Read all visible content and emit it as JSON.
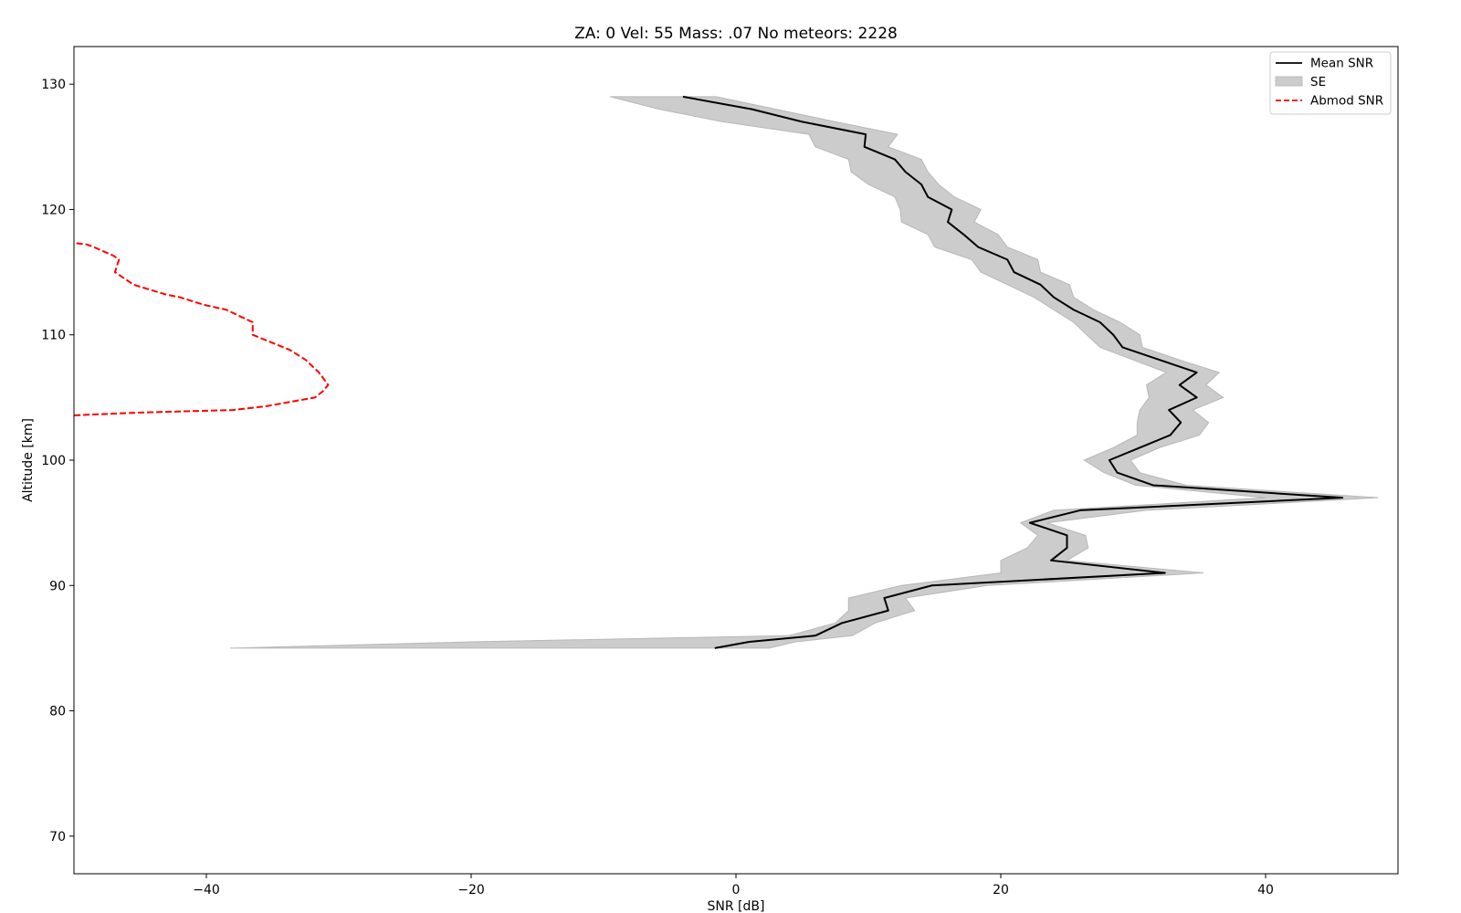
{
  "chart_data": {
    "type": "line",
    "title": "ZA: 0 Vel: 55 Mass: .07 No meteors: 2228",
    "xlabel": "SNR [dB]",
    "ylabel": "Altitude [km]",
    "xlim": [
      -50,
      50
    ],
    "ylim": [
      67,
      133
    ],
    "xticks": [
      -40,
      -20,
      0,
      20,
      40
    ],
    "xtick_labels": [
      "−40",
      "−20",
      "0",
      "20",
      "40"
    ],
    "yticks": [
      70,
      80,
      90,
      100,
      110,
      120,
      130
    ],
    "ytick_labels": [
      "70",
      "80",
      "90",
      "100",
      "110",
      "120",
      "130"
    ],
    "grid": false,
    "legend_position": "top-right",
    "series": [
      {
        "name": "Mean SNR",
        "style": "solid",
        "color": "#000000",
        "points": [
          [
            -4.0,
            129
          ],
          [
            1.2,
            128
          ],
          [
            5.0,
            127
          ],
          [
            9.8,
            126
          ],
          [
            9.7,
            125
          ],
          [
            12.0,
            124
          ],
          [
            12.8,
            123
          ],
          [
            14.0,
            122
          ],
          [
            14.5,
            121
          ],
          [
            16.3,
            120
          ],
          [
            16.0,
            119
          ],
          [
            17.2,
            118
          ],
          [
            18.3,
            117
          ],
          [
            20.5,
            116
          ],
          [
            21.0,
            115
          ],
          [
            23.0,
            114
          ],
          [
            24.0,
            113
          ],
          [
            25.5,
            112
          ],
          [
            27.5,
            111
          ],
          [
            28.5,
            110
          ],
          [
            29.2,
            109
          ],
          [
            32.0,
            108
          ],
          [
            34.8,
            107
          ],
          [
            33.5,
            106
          ],
          [
            34.8,
            105
          ],
          [
            32.7,
            104
          ],
          [
            33.6,
            103
          ],
          [
            32.8,
            102
          ],
          [
            30.5,
            101
          ],
          [
            28.2,
            100
          ],
          [
            28.8,
            99
          ],
          [
            31.5,
            98
          ],
          [
            45.8,
            97
          ],
          [
            26.0,
            96
          ],
          [
            22.2,
            95
          ],
          [
            25.0,
            94
          ],
          [
            25.0,
            93
          ],
          [
            23.8,
            92
          ],
          [
            32.4,
            91
          ],
          [
            14.8,
            90
          ],
          [
            11.2,
            89
          ],
          [
            11.5,
            88
          ],
          [
            8.0,
            87
          ],
          [
            6.0,
            86
          ],
          [
            1.0,
            85.5
          ],
          [
            -1.6,
            85
          ]
        ]
      },
      {
        "name": "SE",
        "style": "band",
        "color": "#cccccc",
        "upper": [
          [
            -1.5,
            129
          ],
          [
            3.0,
            128
          ],
          [
            7.5,
            127
          ],
          [
            12.2,
            126
          ],
          [
            11.5,
            125
          ],
          [
            14.0,
            124
          ],
          [
            14.5,
            123
          ],
          [
            15.3,
            122
          ],
          [
            16.5,
            121
          ],
          [
            18.5,
            120
          ],
          [
            18.0,
            119
          ],
          [
            19.8,
            118
          ],
          [
            20.5,
            117
          ],
          [
            22.8,
            116
          ],
          [
            23.0,
            115
          ],
          [
            25.2,
            114
          ],
          [
            25.5,
            113
          ],
          [
            27.0,
            112
          ],
          [
            29.0,
            111
          ],
          [
            30.5,
            110
          ],
          [
            30.7,
            109
          ],
          [
            33.5,
            108
          ],
          [
            36.5,
            107
          ],
          [
            35.5,
            106
          ],
          [
            36.8,
            105
          ],
          [
            34.5,
            104
          ],
          [
            35.7,
            103
          ],
          [
            35.0,
            102
          ],
          [
            32.0,
            101
          ],
          [
            29.8,
            100
          ],
          [
            30.5,
            99
          ],
          [
            34.0,
            98
          ],
          [
            48.5,
            97
          ],
          [
            31.0,
            96
          ],
          [
            23.5,
            95
          ],
          [
            26.4,
            94
          ],
          [
            26.6,
            93
          ],
          [
            25.0,
            92
          ],
          [
            35.3,
            91
          ],
          [
            19.0,
            90
          ],
          [
            12.8,
            89
          ],
          [
            13.5,
            88
          ],
          [
            10.5,
            87
          ],
          [
            8.8,
            86
          ],
          [
            4.5,
            85.5
          ],
          [
            2.5,
            85
          ]
        ],
        "lower": [
          [
            -9.5,
            129
          ],
          [
            -5.8,
            128
          ],
          [
            -1.0,
            127
          ],
          [
            5.5,
            126
          ],
          [
            6.0,
            125
          ],
          [
            8.5,
            124
          ],
          [
            8.7,
            123
          ],
          [
            10.0,
            122
          ],
          [
            12.0,
            121
          ],
          [
            12.4,
            120
          ],
          [
            12.5,
            119
          ],
          [
            14.5,
            118
          ],
          [
            15.0,
            117
          ],
          [
            17.8,
            116
          ],
          [
            18.5,
            115
          ],
          [
            20.5,
            114
          ],
          [
            22.5,
            113
          ],
          [
            24.0,
            112
          ],
          [
            25.5,
            111
          ],
          [
            26.5,
            110
          ],
          [
            27.5,
            109
          ],
          [
            30.0,
            108
          ],
          [
            32.5,
            107
          ],
          [
            31.0,
            106
          ],
          [
            31.2,
            105
          ],
          [
            30.5,
            104
          ],
          [
            30.3,
            103
          ],
          [
            30.3,
            102
          ],
          [
            28.5,
            101
          ],
          [
            26.3,
            100
          ],
          [
            27.8,
            99
          ],
          [
            30.2,
            98
          ],
          [
            40.0,
            97
          ],
          [
            24.0,
            96
          ],
          [
            21.5,
            95
          ],
          [
            22.8,
            94
          ],
          [
            22.0,
            93
          ],
          [
            20.0,
            92
          ],
          [
            20.0,
            91
          ],
          [
            12.5,
            90
          ],
          [
            8.5,
            89
          ],
          [
            8.5,
            88
          ],
          [
            7.5,
            87
          ],
          [
            4.0,
            86
          ],
          [
            -20.0,
            85.5
          ],
          [
            -38.2,
            85
          ]
        ]
      },
      {
        "name": "Abmod SNR",
        "style": "dashed",
        "color": "#ff0000",
        "points": [
          [
            -50.5,
            117.4
          ],
          [
            -49,
            117.2
          ],
          [
            -48.5,
            117
          ],
          [
            -47,
            116.3
          ],
          [
            -46.6,
            116
          ],
          [
            -46.9,
            115
          ],
          [
            -45.5,
            114
          ],
          [
            -43,
            113.2
          ],
          [
            -42,
            113
          ],
          [
            -40.2,
            112.4
          ],
          [
            -38.5,
            112
          ],
          [
            -36.5,
            111
          ],
          [
            -36.5,
            110
          ],
          [
            -33.7,
            108.8
          ],
          [
            -32.5,
            108
          ],
          [
            -31.5,
            107
          ],
          [
            -30.8,
            106
          ],
          [
            -31.2,
            105.5
          ],
          [
            -31.8,
            105
          ],
          [
            -35.5,
            104.3
          ],
          [
            -38.0,
            104
          ],
          [
            -45.0,
            103.8
          ],
          [
            -49.5,
            103.6
          ],
          [
            -51.0,
            103.5
          ]
        ]
      }
    ]
  }
}
